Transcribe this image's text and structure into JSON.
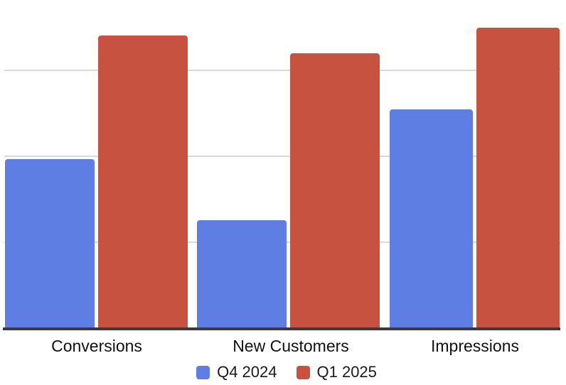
{
  "chart_data": {
    "type": "bar",
    "title": "",
    "xlabel": "",
    "ylabel": "",
    "categories": [
      "Conversions",
      "New Customers",
      "Impressions"
    ],
    "series": [
      {
        "name": "Q4 2024",
        "color": "#5F7EE3",
        "values": [
          197,
          126,
          255
        ]
      },
      {
        "name": "Q1 2025",
        "color": "#C6523F",
        "values": [
          341,
          320,
          350
        ]
      }
    ],
    "ylim": [
      0,
      382
    ],
    "y_axis_labels_visible": false,
    "gridlines": {
      "values": [
        100,
        200,
        300
      ],
      "color": "#D9D9D9",
      "visible": true
    },
    "axis_color": "#3A3A3A",
    "label_color": "#111111",
    "legend_position": "bottom",
    "background": "#FFFFFF"
  }
}
